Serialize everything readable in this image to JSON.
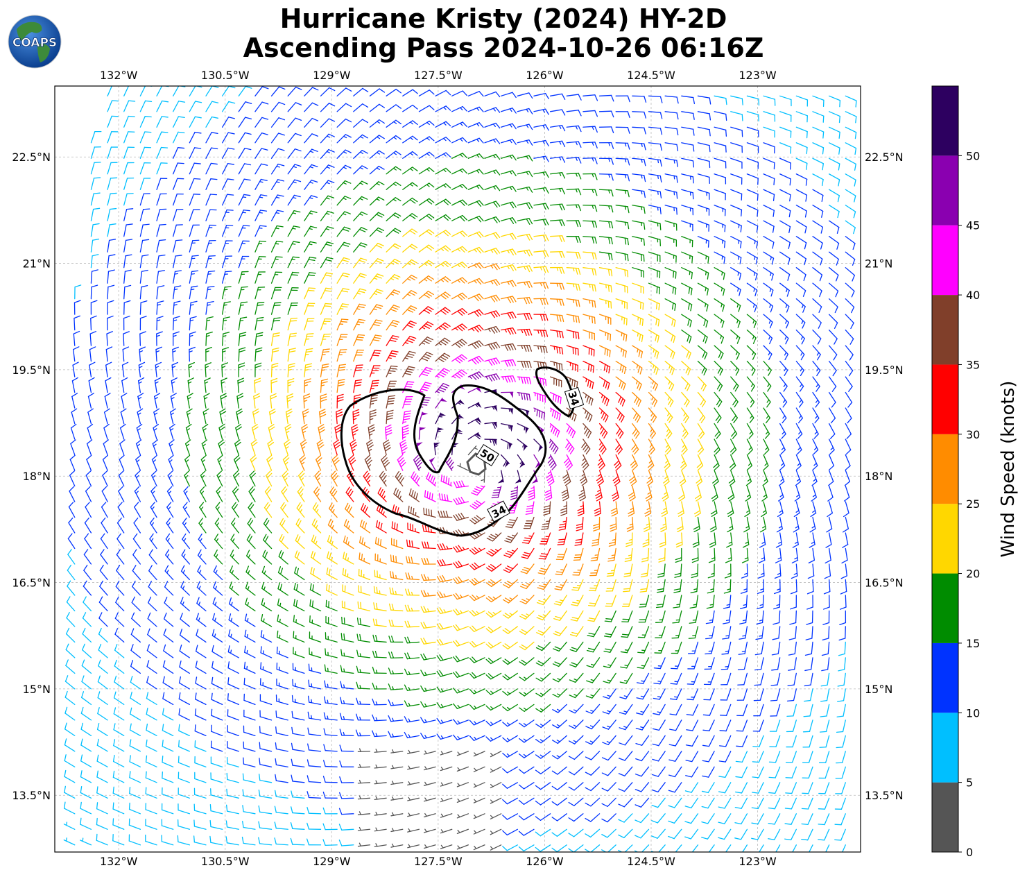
{
  "logo": {
    "text": "COAPS",
    "icon": "globe-icon"
  },
  "title": {
    "line1": "Hurricane Kristy (2024) HY-2D",
    "line2": "Ascending Pass 2024-10-26 06:16Z"
  },
  "chart_data": {
    "type": "wind-barb-map",
    "xlabel_ticks": [
      "132°W",
      "130.5°W",
      "129°W",
      "127.5°W",
      "126°W",
      "124.5°W",
      "123°W"
    ],
    "ylabel_ticks": [
      "22.5°N",
      "21°N",
      "19.5°N",
      "18°N",
      "16.5°N",
      "15°N",
      "13.5°N"
    ],
    "lon_ticks": [
      -132,
      -130.5,
      -129,
      -127.5,
      -126,
      -124.5,
      -123
    ],
    "lat_ticks": [
      22.5,
      21,
      19.5,
      18,
      16.5,
      15,
      13.5
    ],
    "lon_range": [
      -132.9,
      -121.55
    ],
    "lat_range": [
      12.7,
      23.5
    ],
    "grid": true,
    "storm_center": {
      "lon": -127.0,
      "lat": 18.15
    },
    "contours": [
      {
        "label": "34",
        "level": 34
      },
      {
        "label": "34",
        "level": 34
      },
      {
        "label": "50",
        "level": 50
      }
    ],
    "colorbar": {
      "label": "Wind Speed (knots)",
      "ticks": [
        "0",
        "5",
        "10",
        "15",
        "20",
        "25",
        "30",
        "35",
        "40",
        "45",
        "50"
      ],
      "bins": [
        {
          "min": 0,
          "max": 5,
          "color": "#555555"
        },
        {
          "min": 5,
          "max": 10,
          "color": "#00bfff"
        },
        {
          "min": 10,
          "max": 15,
          "color": "#0033ff"
        },
        {
          "min": 15,
          "max": 20,
          "color": "#008c00"
        },
        {
          "min": 20,
          "max": 25,
          "color": "#ffd700"
        },
        {
          "min": 25,
          "max": 30,
          "color": "#ff8c00"
        },
        {
          "min": 30,
          "max": 35,
          "color": "#ff0000"
        },
        {
          "min": 35,
          "max": 40,
          "color": "#803f2a"
        },
        {
          "min": 40,
          "max": 45,
          "color": "#ff00ff"
        },
        {
          "min": 45,
          "max": 50,
          "color": "#8a00b0"
        },
        {
          "min": 50,
          "max": 55,
          "color": "#2d0060"
        }
      ]
    }
  }
}
